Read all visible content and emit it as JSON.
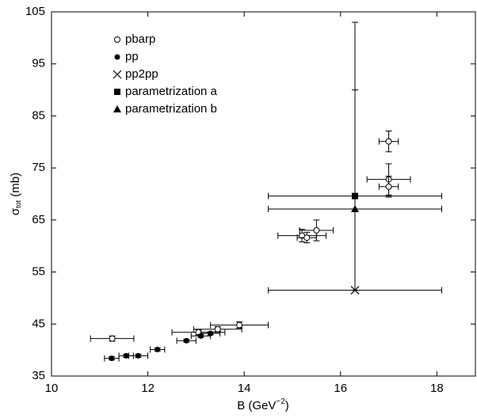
{
  "chart_data": {
    "type": "scatter",
    "xlabel": {
      "text": "B (GeV",
      "sup": "−2",
      "end": ")"
    },
    "ylabel": {
      "text": "σ",
      "sub": "tot",
      "end": " (mb)"
    },
    "xlim": [
      10,
      18.8
    ],
    "xticks": [
      10,
      12,
      14,
      16,
      18
    ],
    "ylim": [
      35,
      105
    ],
    "yticks": [
      35,
      45,
      55,
      65,
      75,
      85,
      95,
      105
    ],
    "legend": "upper left",
    "color": "#000000",
    "series": [
      {
        "name": "pbarp",
        "marker": "open-circle",
        "x": [
          11.26,
          13.05,
          13.45,
          13.9,
          15.2,
          15.3,
          15.5,
          17.0,
          17.0,
          17.0
        ],
        "values": [
          42.2,
          43.4,
          44.0,
          44.8,
          62.0,
          61.6,
          63.0,
          80.1,
          72.8,
          71.4
        ],
        "xerr": [
          0.45,
          0.55,
          0.5,
          0.6,
          0.5,
          0.2,
          0.35,
          0.2,
          0.45,
          0.2
        ],
        "yerr": [
          [
            0.5,
            0.5
          ],
          [
            0.5,
            0.5
          ],
          [
            0.5,
            0.5
          ],
          [
            0.6,
            0.6
          ],
          [
            1.2,
            1.2
          ],
          [
            1.0,
            1.0
          ],
          [
            2.0,
            2.0
          ],
          [
            2.0,
            2.0
          ],
          [
            3.0,
            3.0
          ],
          [
            2.0,
            2.0
          ]
        ]
      },
      {
        "name": "pp",
        "marker": "filled-circle",
        "x": [
          11.25,
          11.55,
          11.8,
          12.2,
          12.8,
          13.1,
          13.3
        ],
        "values": [
          38.4,
          38.9,
          38.9,
          40.1,
          41.8,
          42.7,
          43.2
        ],
        "xerr": [
          0.15,
          0.15,
          0.2,
          0.15,
          0.2,
          0.2,
          0.2
        ],
        "yerr": [
          [
            0.3,
            0.3
          ],
          [
            0.3,
            0.3
          ],
          [
            0.3,
            0.3
          ],
          [
            0.3,
            0.3
          ],
          [
            0.3,
            0.3
          ],
          [
            0.3,
            0.3
          ],
          [
            0.3,
            0.3
          ]
        ]
      },
      {
        "name": "pp2pp",
        "marker": "cross",
        "x": [
          16.3
        ],
        "values": [
          51.5
        ],
        "xerr": [
          1.8
        ],
        "yerr": [
          [
            0,
            38.5
          ]
        ]
      },
      {
        "name": "parametrization a",
        "marker": "square",
        "x": [
          16.3
        ],
        "values": [
          69.6
        ],
        "xerr": [
          1.8
        ],
        "yerr": [
          [
            18.1,
            33.4
          ]
        ]
      },
      {
        "name": "parametrization b",
        "marker": "triangle",
        "x": [
          16.3
        ],
        "values": [
          67.1
        ],
        "xerr": [
          1.8
        ],
        "yerr": [
          [
            0,
            0
          ]
        ]
      }
    ]
  }
}
